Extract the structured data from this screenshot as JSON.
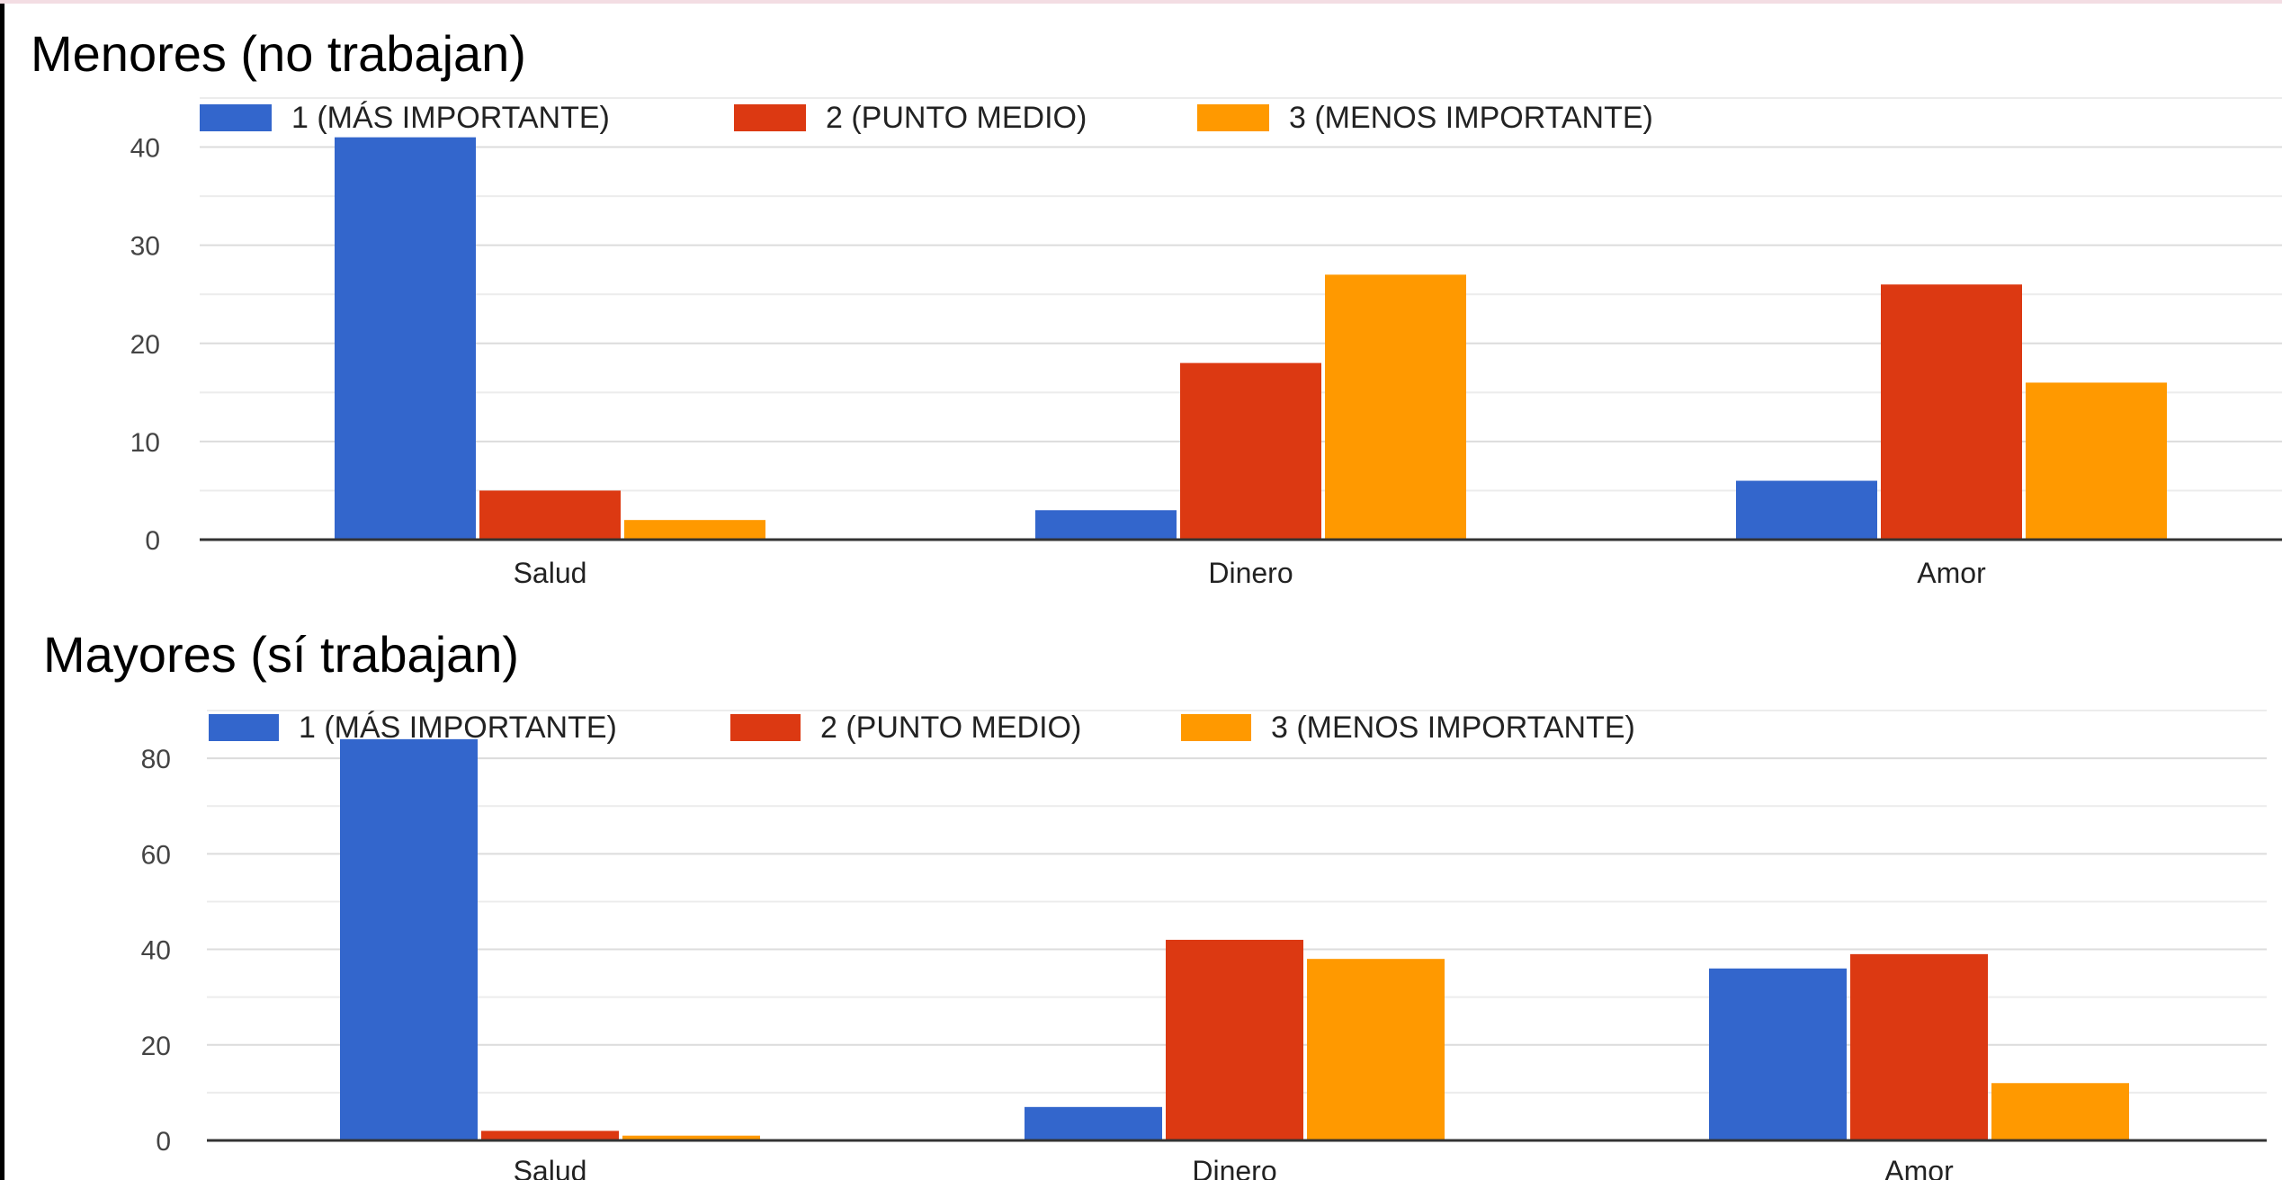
{
  "colors": {
    "series_1": "#3366cc",
    "series_2": "#dc3912",
    "series_3": "#ff9900"
  },
  "chart_data": [
    {
      "type": "bar",
      "title": "Menores (no trabajan)",
      "categories": [
        "Salud",
        "Dinero",
        "Amor"
      ],
      "series": [
        {
          "name": "1 (MÁS IMPORTANTE)",
          "values": [
            41,
            3,
            6
          ]
        },
        {
          "name": "2 (PUNTO MEDIO)",
          "values": [
            5,
            18,
            26
          ]
        },
        {
          "name": "3 (MENOS IMPORTANTE)",
          "values": [
            2,
            27,
            16
          ]
        }
      ],
      "yticks": [
        0,
        10,
        20,
        30,
        40
      ],
      "ylim": [
        0,
        45
      ],
      "grid": true,
      "legend_position": "top"
    },
    {
      "type": "bar",
      "title": "Mayores (sí trabajan)",
      "categories": [
        "Salud",
        "Dinero",
        "Amor"
      ],
      "series": [
        {
          "name": "1 (MÁS IMPORTANTE)",
          "values": [
            84,
            7,
            36
          ]
        },
        {
          "name": "2 (PUNTO MEDIO)",
          "values": [
            2,
            42,
            39
          ]
        },
        {
          "name": "3 (MENOS IMPORTANTE)",
          "values": [
            1,
            38,
            12
          ]
        }
      ],
      "yticks": [
        0,
        20,
        40,
        60,
        80
      ],
      "ylim": [
        0,
        90
      ],
      "grid": true,
      "legend_position": "top"
    }
  ]
}
